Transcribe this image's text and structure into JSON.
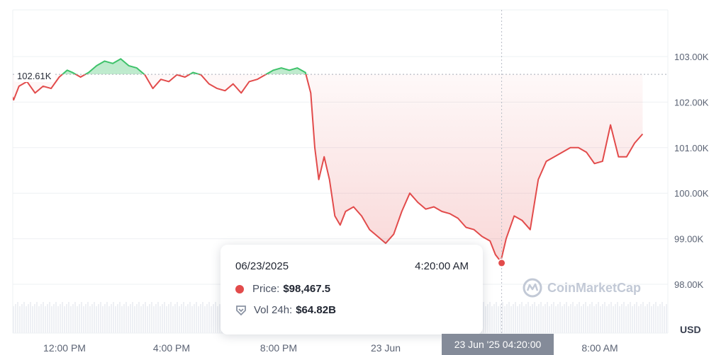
{
  "chart_data": {
    "type": "area",
    "currency_label": "USD",
    "ylim": [
      97000,
      104000
    ],
    "y_ticks": [
      "98.00K",
      "99.00K",
      "100.00K",
      "101.00K",
      "102.00K",
      "103.00K"
    ],
    "y_tick_values": [
      98000,
      99000,
      100000,
      101000,
      102000,
      103000
    ],
    "x_ticks": [
      "12:00 PM",
      "4:00 PM",
      "8:00 PM",
      "23 Jun",
      "8:00 AM"
    ],
    "x_tick_hours": [
      12,
      16,
      20,
      24,
      32
    ],
    "x_range_hours": [
      9.1,
      33.6
    ],
    "baseline_value": 102610,
    "baseline_label": "102.61K",
    "colors": {
      "up": "#3ec26a",
      "down": "#e24b4b",
      "baseline": "#a8adb8"
    },
    "series": [
      {
        "x": [
          9.1,
          9.3,
          9.5,
          9.7,
          9.9,
          10.1,
          10.3,
          10.6,
          10.9,
          11.2,
          11.5,
          11.8,
          12.1,
          12.3,
          12.6,
          12.9,
          13.2,
          13.5,
          13.8,
          14.1,
          14.4,
          14.7,
          15.0,
          15.3,
          15.6,
          15.9,
          16.2,
          16.5,
          16.8,
          17.1,
          17.4,
          17.7,
          18.0,
          18.3,
          18.6,
          18.9,
          19.2,
          19.5,
          19.8,
          20.1,
          20.4,
          20.7,
          21.0,
          21.2,
          21.35,
          21.5,
          21.7,
          21.9,
          22.1,
          22.3,
          22.5,
          22.8,
          23.1,
          23.4,
          23.7,
          24.0,
          24.3,
          24.6,
          24.9,
          25.2,
          25.5,
          25.8,
          26.1,
          26.4,
          26.7,
          27.0,
          27.3,
          27.6,
          27.9,
          28.1,
          28.3,
          28.5,
          28.8,
          29.1,
          29.4,
          29.7,
          30.0,
          30.3,
          30.6,
          30.9,
          31.2,
          31.5,
          31.8,
          32.1,
          32.4,
          32.7,
          33.0,
          33.3,
          33.6
        ],
        "y": [
          102450,
          102850,
          102350,
          102150,
          102300,
          102050,
          102350,
          102450,
          102200,
          102350,
          102300,
          102550,
          102700,
          102650,
          102550,
          102650,
          102800,
          102900,
          102850,
          102950,
          102800,
          102750,
          102600,
          102300,
          102500,
          102450,
          102600,
          102550,
          102650,
          102600,
          102400,
          102300,
          102250,
          102400,
          102200,
          102450,
          102500,
          102600,
          102700,
          102750,
          102700,
          102750,
          102650,
          102200,
          101000,
          100300,
          100800,
          100300,
          99500,
          99300,
          99600,
          99700,
          99500,
          99200,
          99050,
          98900,
          99100,
          99600,
          100000,
          99800,
          99650,
          99700,
          99600,
          99550,
          99450,
          99250,
          99200,
          99050,
          98950,
          98650,
          98500,
          99000,
          99500,
          99400,
          99200,
          100300,
          100700,
          100800,
          100900,
          101000,
          101000,
          100900,
          100650,
          100700,
          101500,
          100800,
          100800,
          101100,
          101300
        ]
      }
    ],
    "hover_point": {
      "hour": 28.333,
      "value": 98467.5
    }
  },
  "tooltip": {
    "date": "06/23/2025",
    "time": "4:20:00 AM",
    "price_label": "Price:",
    "price_value": "$98,467.5",
    "vol_label": "Vol 24h:",
    "vol_value": "$64.82B"
  },
  "x_badge": "23 Jun '25 04:20:00",
  "watermark": "CoinMarketCap"
}
